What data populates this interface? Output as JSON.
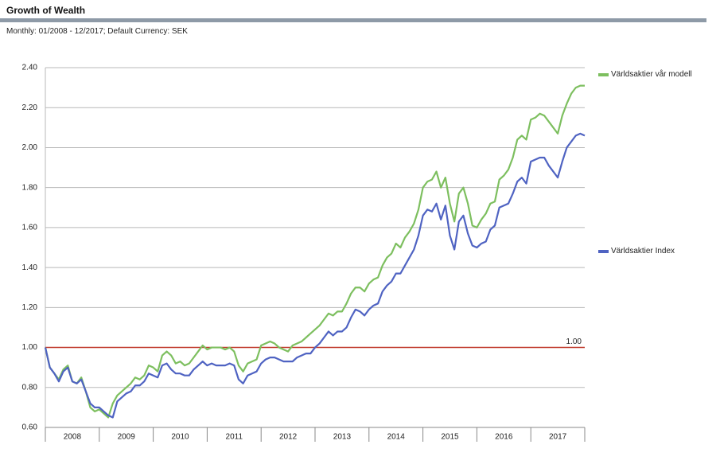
{
  "chart_data": {
    "type": "line",
    "title": "Growth of Wealth",
    "subtitle": "Monthly: 01/2008 - 12/2017; Default Currency: SEK",
    "categories": [
      null,
      null,
      null,
      null,
      null,
      null,
      "2008",
      null,
      null,
      null,
      null,
      null,
      null,
      null,
      null,
      null,
      null,
      null,
      "2009",
      null,
      null,
      null,
      null,
      null,
      null,
      null,
      null,
      null,
      null,
      null,
      "2010",
      null,
      null,
      null,
      null,
      null,
      null,
      null,
      null,
      null,
      null,
      null,
      "2011",
      null,
      null,
      null,
      null,
      null,
      null,
      null,
      null,
      null,
      null,
      null,
      "2012",
      null,
      null,
      null,
      null,
      null,
      null,
      null,
      null,
      null,
      null,
      null,
      "2013",
      null,
      null,
      null,
      null,
      null,
      null,
      null,
      null,
      null,
      null,
      null,
      "2014",
      null,
      null,
      null,
      null,
      null,
      null,
      null,
      null,
      null,
      null,
      null,
      "2015",
      null,
      null,
      null,
      null,
      null,
      null,
      null,
      null,
      null,
      null,
      null,
      "2016",
      null,
      null,
      null,
      null,
      null,
      null,
      null,
      null,
      null,
      null,
      null,
      "2017",
      null,
      null,
      null,
      null,
      null,
      null
    ],
    "series": [
      {
        "name": "Världsaktier vår modell",
        "color": "#7dbf5f",
        "values": [
          1.0,
          0.9,
          0.87,
          0.84,
          0.89,
          0.91,
          0.83,
          0.82,
          0.85,
          0.78,
          0.7,
          0.68,
          0.69,
          0.67,
          0.65,
          0.72,
          0.76,
          0.78,
          0.8,
          0.82,
          0.85,
          0.84,
          0.86,
          0.91,
          0.9,
          0.88,
          0.96,
          0.98,
          0.96,
          0.92,
          0.93,
          0.91,
          0.92,
          0.95,
          0.98,
          1.01,
          0.99,
          1.0,
          1.0,
          1.0,
          0.99,
          1.0,
          0.98,
          0.91,
          0.88,
          0.92,
          0.93,
          0.94,
          1.01,
          1.02,
          1.03,
          1.02,
          1.0,
          0.99,
          0.98,
          1.01,
          1.02,
          1.03,
          1.05,
          1.07,
          1.09,
          1.11,
          1.14,
          1.17,
          1.16,
          1.18,
          1.18,
          1.22,
          1.27,
          1.3,
          1.3,
          1.28,
          1.32,
          1.34,
          1.35,
          1.41,
          1.45,
          1.47,
          1.52,
          1.5,
          1.55,
          1.58,
          1.62,
          1.69,
          1.8,
          1.83,
          1.84,
          1.88,
          1.8,
          1.85,
          1.72,
          1.63,
          1.77,
          1.8,
          1.72,
          1.61,
          1.6,
          1.64,
          1.67,
          1.72,
          1.73,
          1.84,
          1.86,
          1.89,
          1.95,
          2.04,
          2.06,
          2.04,
          2.14,
          2.15,
          2.17,
          2.16,
          2.13,
          2.1,
          2.07,
          2.16,
          2.22,
          2.27,
          2.3,
          2.31,
          2.31
        ]
      },
      {
        "name": "Världsaktier Index",
        "color": "#4f63c2",
        "values": [
          1.0,
          0.9,
          0.87,
          0.83,
          0.88,
          0.9,
          0.83,
          0.82,
          0.84,
          0.78,
          0.72,
          0.7,
          0.7,
          0.68,
          0.66,
          0.65,
          0.73,
          0.75,
          0.77,
          0.78,
          0.81,
          0.81,
          0.83,
          0.87,
          0.86,
          0.85,
          0.91,
          0.92,
          0.89,
          0.87,
          0.87,
          0.86,
          0.86,
          0.89,
          0.91,
          0.93,
          0.91,
          0.92,
          0.91,
          0.91,
          0.91,
          0.92,
          0.91,
          0.84,
          0.82,
          0.86,
          0.87,
          0.88,
          0.92,
          0.94,
          0.95,
          0.95,
          0.94,
          0.93,
          0.93,
          0.93,
          0.95,
          0.96,
          0.97,
          0.97,
          1.0,
          1.02,
          1.05,
          1.08,
          1.06,
          1.08,
          1.08,
          1.1,
          1.15,
          1.19,
          1.18,
          1.16,
          1.19,
          1.21,
          1.22,
          1.28,
          1.31,
          1.33,
          1.37,
          1.37,
          1.41,
          1.45,
          1.49,
          1.56,
          1.66,
          1.69,
          1.68,
          1.72,
          1.64,
          1.71,
          1.56,
          1.49,
          1.63,
          1.66,
          1.57,
          1.51,
          1.5,
          1.52,
          1.53,
          1.59,
          1.61,
          1.7,
          1.71,
          1.72,
          1.77,
          1.83,
          1.85,
          1.82,
          1.93,
          1.94,
          1.95,
          1.95,
          1.91,
          1.88,
          1.85,
          1.93,
          2.0,
          2.03,
          2.06,
          2.07,
          2.06
        ]
      }
    ],
    "reference_line": {
      "value": 1,
      "label": "1.00",
      "color": "#c0392b"
    },
    "ylim": [
      0.6,
      2.4
    ],
    "yticks": [
      {
        "value": 0.6,
        "label": "0.60"
      },
      {
        "value": 0.8,
        "label": "0.80"
      },
      {
        "value": 1,
        "label": "1.00"
      },
      {
        "value": 1.2,
        "label": "1.20"
      },
      {
        "value": 1.4,
        "label": "1.40"
      },
      {
        "value": 1.6,
        "label": "1.60"
      },
      {
        "value": 1.8,
        "label": "1.80"
      },
      {
        "value": 2,
        "label": "2.00"
      },
      {
        "value": 2.2,
        "label": "2.20"
      },
      {
        "value": 2.4,
        "label": "2.40"
      }
    ],
    "grid": true
  }
}
